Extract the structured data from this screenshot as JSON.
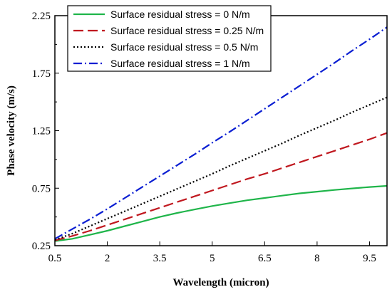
{
  "chart_data": {
    "type": "line",
    "title": "",
    "xlabel": "Wavelength (micron)",
    "ylabel": "Phase velocity (m/s)",
    "xlim": [
      0.5,
      10
    ],
    "ylim": [
      0.25,
      2.25
    ],
    "xticks": [
      0.5,
      2,
      3.5,
      5,
      6.5,
      8,
      9.5
    ],
    "xtick_labels": [
      "0.5",
      "2",
      "3.5",
      "5",
      "6.5",
      "8",
      "9.5"
    ],
    "yticks": [
      0.25,
      0.75,
      1.25,
      1.75,
      2.25
    ],
    "ytick_labels": [
      "0.25",
      "0.75",
      "1.25",
      "1.75",
      "2.25"
    ],
    "grid": false,
    "legend_position": "top-left",
    "series": [
      {
        "name": "Surface residual stress = 0 N/m",
        "color": "#1fb54a",
        "dash": "solid",
        "x": [
          0.5,
          1,
          1.5,
          2,
          2.5,
          3,
          3.5,
          4,
          4.5,
          5,
          5.5,
          6,
          6.5,
          7,
          7.5,
          8,
          8.5,
          9,
          9.5,
          10
        ],
        "y": [
          0.29,
          0.31,
          0.345,
          0.38,
          0.42,
          0.46,
          0.5,
          0.535,
          0.565,
          0.595,
          0.62,
          0.645,
          0.665,
          0.685,
          0.705,
          0.72,
          0.735,
          0.748,
          0.76,
          0.77
        ]
      },
      {
        "name": "Surface residual stress = 0.25 N/m",
        "color": "#c0181f",
        "dash": "long-dash",
        "x": [
          0.5,
          1,
          1.5,
          2,
          2.5,
          3,
          3.5,
          4,
          4.5,
          5,
          5.5,
          6,
          6.5,
          7,
          7.5,
          8,
          8.5,
          9,
          9.5,
          10
        ],
        "y": [
          0.295,
          0.335,
          0.38,
          0.43,
          0.48,
          0.53,
          0.58,
          0.63,
          0.68,
          0.73,
          0.78,
          0.83,
          0.875,
          0.925,
          0.975,
          1.025,
          1.075,
          1.125,
          1.175,
          1.23
        ]
      },
      {
        "name": "Surface residual stress = 0.5 N/m",
        "color": "#000000",
        "dash": "dotted",
        "x": [
          0.5,
          1,
          1.5,
          2,
          2.5,
          3,
          3.5,
          4,
          4.5,
          5,
          5.5,
          6,
          6.5,
          7,
          7.5,
          8,
          8.5,
          9,
          9.5,
          10
        ],
        "y": [
          0.3,
          0.355,
          0.42,
          0.485,
          0.55,
          0.615,
          0.68,
          0.745,
          0.81,
          0.875,
          0.945,
          1.01,
          1.075,
          1.14,
          1.21,
          1.275,
          1.34,
          1.41,
          1.475,
          1.54
        ]
      },
      {
        "name": "Surface residual stress = 1 N/m",
        "color": "#0a1ed2",
        "dash": "dash-dot",
        "x": [
          0.5,
          1,
          1.5,
          2,
          2.5,
          3,
          3.5,
          4,
          4.5,
          5,
          5.5,
          6,
          6.5,
          7,
          7.5,
          8,
          8.5,
          9,
          9.5,
          10
        ],
        "y": [
          0.31,
          0.395,
          0.48,
          0.57,
          0.665,
          0.76,
          0.855,
          0.95,
          1.045,
          1.145,
          1.24,
          1.34,
          1.44,
          1.54,
          1.64,
          1.74,
          1.84,
          1.945,
          2.045,
          2.15
        ]
      }
    ]
  }
}
